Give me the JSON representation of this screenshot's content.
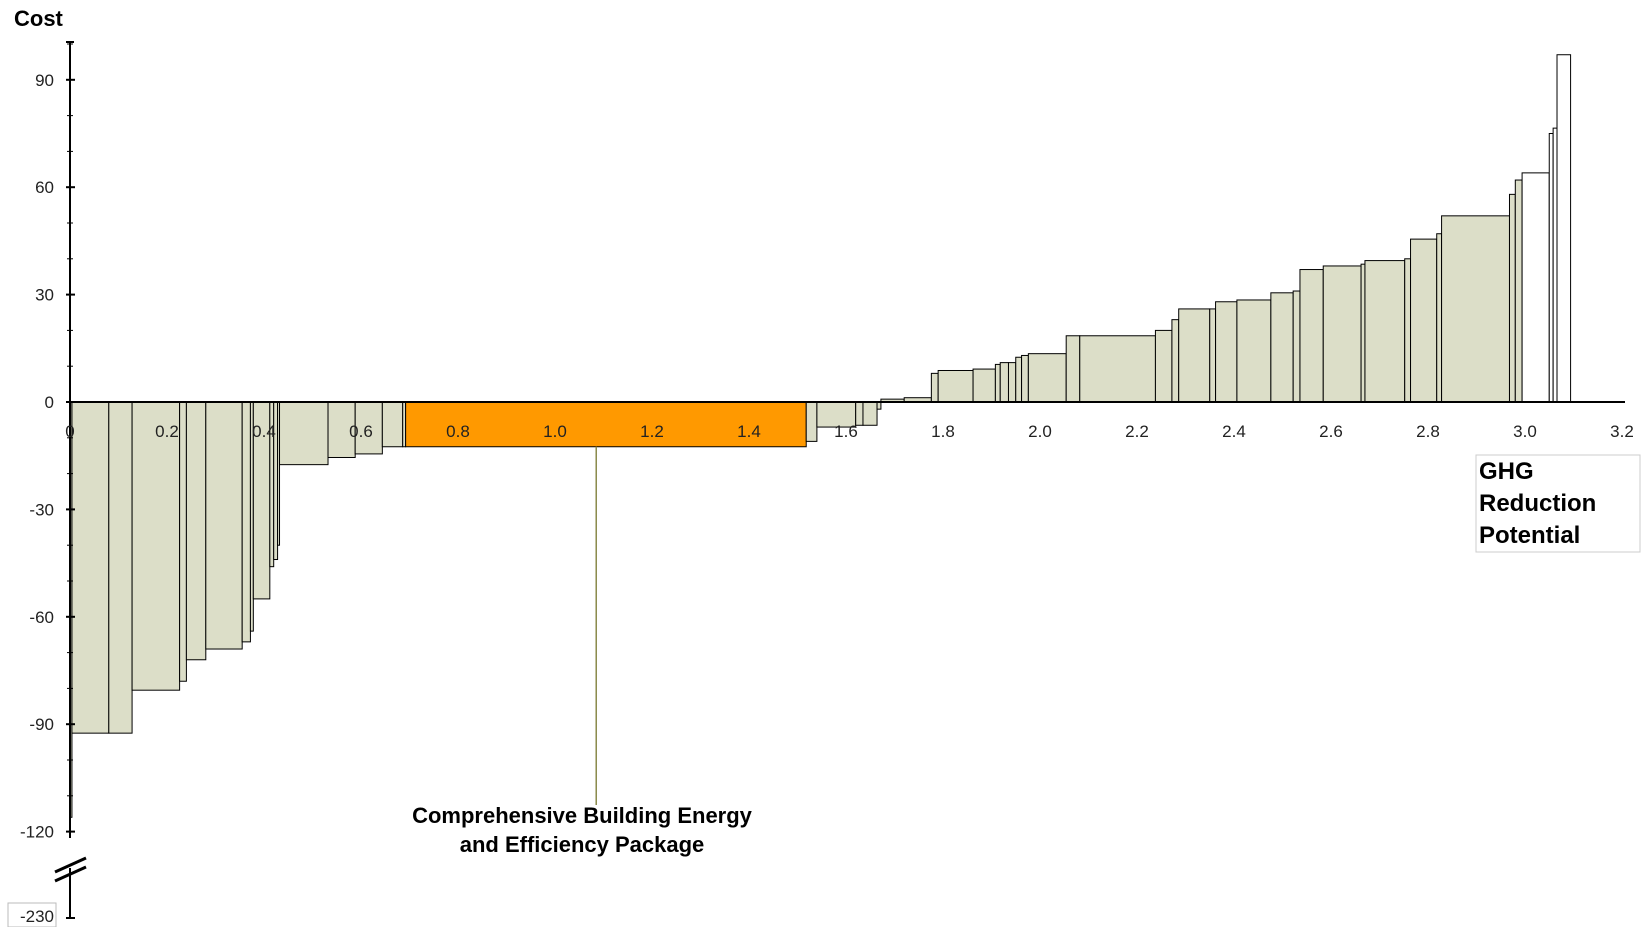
{
  "chart_data": {
    "type": "bar",
    "subtype": "marginal-abatement-cost-curve",
    "ylabel": "Cost",
    "xlabel": "GHG Reduction Potential",
    "xlim": [
      0,
      3.2
    ],
    "ylim": [
      -120,
      100
    ],
    "y_axis_break": true,
    "y_break_bottom_label": "-230",
    "x_ticks": [
      {
        "value": 0.0,
        "label": "0"
      },
      {
        "value": 0.2,
        "label": "0.2"
      },
      {
        "value": 0.4,
        "label": "0.4"
      },
      {
        "value": 0.6,
        "label": "0.6"
      },
      {
        "value": 0.8,
        "label": "0.8"
      },
      {
        "value": 1.0,
        "label": "1.0"
      },
      {
        "value": 1.2,
        "label": "1.2"
      },
      {
        "value": 1.4,
        "label": "1.4"
      },
      {
        "value": 1.6,
        "label": "1.6"
      },
      {
        "value": 1.8,
        "label": "1.8"
      },
      {
        "value": 2.0,
        "label": "2.0"
      },
      {
        "value": 2.2,
        "label": "2.2"
      },
      {
        "value": 2.4,
        "label": "2.4"
      },
      {
        "value": 2.6,
        "label": "2.6"
      },
      {
        "value": 2.8,
        "label": "2.8"
      },
      {
        "value": 3.0,
        "label": "3.0"
      },
      {
        "value": 3.2,
        "label": "3.2"
      }
    ],
    "y_ticks": [
      {
        "value": 90,
        "label": "90"
      },
      {
        "value": 60,
        "label": "60"
      },
      {
        "value": 30,
        "label": "30"
      },
      {
        "value": 0,
        "label": "0"
      },
      {
        "value": -30,
        "label": "-30"
      },
      {
        "value": -60,
        "label": "-60"
      },
      {
        "value": -90,
        "label": "-90"
      },
      {
        "value": -120,
        "label": "-120"
      }
    ],
    "colors": {
      "default": "#dcdec8",
      "highlight": "#ff9900",
      "white": "#ffffff",
      "border": "#000000"
    },
    "bars": [
      {
        "x0": 0.0,
        "x1": 0.004,
        "cost": -116
      },
      {
        "x0": 0.004,
        "x1": 0.08,
        "cost": -92.5
      },
      {
        "x0": 0.08,
        "x1": 0.128,
        "cost": -92.5
      },
      {
        "x0": 0.128,
        "x1": 0.226,
        "cost": -80.5
      },
      {
        "x0": 0.226,
        "x1": 0.24,
        "cost": -78
      },
      {
        "x0": 0.24,
        "x1": 0.28,
        "cost": -72
      },
      {
        "x0": 0.28,
        "x1": 0.355,
        "cost": -69
      },
      {
        "x0": 0.355,
        "x1": 0.372,
        "cost": -67
      },
      {
        "x0": 0.372,
        "x1": 0.378,
        "cost": -64
      },
      {
        "x0": 0.378,
        "x1": 0.412,
        "cost": -55
      },
      {
        "x0": 0.412,
        "x1": 0.42,
        "cost": -46
      },
      {
        "x0": 0.42,
        "x1": 0.428,
        "cost": -44
      },
      {
        "x0": 0.428,
        "x1": 0.432,
        "cost": -40
      },
      {
        "x0": 0.432,
        "x1": 0.532,
        "cost": -17.5
      },
      {
        "x0": 0.532,
        "x1": 0.588,
        "cost": -15.5
      },
      {
        "x0": 0.588,
        "x1": 0.644,
        "cost": -14.5
      },
      {
        "x0": 0.644,
        "x1": 0.686,
        "cost": -12.5
      },
      {
        "x0": 0.686,
        "x1": 0.692,
        "cost": -12.5
      },
      {
        "x0": 0.692,
        "x1": 1.518,
        "cost": -12.5,
        "highlight": true
      },
      {
        "x0": 1.518,
        "x1": 1.54,
        "cost": -11
      },
      {
        "x0": 1.54,
        "x1": 1.62,
        "cost": -7
      },
      {
        "x0": 1.62,
        "x1": 1.635,
        "cost": -6.5
      },
      {
        "x0": 1.635,
        "x1": 1.664,
        "cost": -6.5
      },
      {
        "x0": 1.664,
        "x1": 1.672,
        "cost": -2
      },
      {
        "x0": 1.672,
        "x1": 1.72,
        "cost": 0.8
      },
      {
        "x0": 1.72,
        "x1": 1.776,
        "cost": 1.2
      },
      {
        "x0": 1.776,
        "x1": 1.79,
        "cost": 8
      },
      {
        "x0": 1.79,
        "x1": 1.862,
        "cost": 8.8
      },
      {
        "x0": 1.862,
        "x1": 1.908,
        "cost": 9.2
      },
      {
        "x0": 1.908,
        "x1": 1.918,
        "cost": 10.5
      },
      {
        "x0": 1.918,
        "x1": 1.935,
        "cost": 11
      },
      {
        "x0": 1.935,
        "x1": 1.95,
        "cost": 11
      },
      {
        "x0": 1.95,
        "x1": 1.962,
        "cost": 12.5
      },
      {
        "x0": 1.962,
        "x1": 1.976,
        "cost": 13
      },
      {
        "x0": 1.976,
        "x1": 2.054,
        "cost": 13.5
      },
      {
        "x0": 2.054,
        "x1": 2.082,
        "cost": 18.5
      },
      {
        "x0": 2.082,
        "x1": 2.238,
        "cost": 18.5
      },
      {
        "x0": 2.238,
        "x1": 2.272,
        "cost": 20
      },
      {
        "x0": 2.272,
        "x1": 2.286,
        "cost": 23
      },
      {
        "x0": 2.286,
        "x1": 2.35,
        "cost": 26
      },
      {
        "x0": 2.35,
        "x1": 2.362,
        "cost": 26
      },
      {
        "x0": 2.362,
        "x1": 2.406,
        "cost": 28
      },
      {
        "x0": 2.406,
        "x1": 2.476,
        "cost": 28.5
      },
      {
        "x0": 2.476,
        "x1": 2.522,
        "cost": 30.5
      },
      {
        "x0": 2.522,
        "x1": 2.536,
        "cost": 31
      },
      {
        "x0": 2.536,
        "x1": 2.584,
        "cost": 37
      },
      {
        "x0": 2.584,
        "x1": 2.662,
        "cost": 38
      },
      {
        "x0": 2.662,
        "x1": 2.67,
        "cost": 38.5
      },
      {
        "x0": 2.67,
        "x1": 2.752,
        "cost": 39.5
      },
      {
        "x0": 2.752,
        "x1": 2.764,
        "cost": 40
      },
      {
        "x0": 2.764,
        "x1": 2.818,
        "cost": 45.5
      },
      {
        "x0": 2.818,
        "x1": 2.828,
        "cost": 47
      },
      {
        "x0": 2.828,
        "x1": 2.968,
        "cost": 52
      },
      {
        "x0": 2.968,
        "x1": 2.98,
        "cost": 58
      },
      {
        "x0": 2.98,
        "x1": 2.994,
        "cost": 62
      },
      {
        "x0": 2.994,
        "x1": 3.05,
        "cost": 64,
        "fill": "white"
      },
      {
        "x0": 3.05,
        "x1": 3.058,
        "cost": 75,
        "fill": "white"
      },
      {
        "x0": 3.058,
        "x1": 3.066,
        "cost": 76.5,
        "fill": "white"
      },
      {
        "x0": 3.066,
        "x1": 3.094,
        "cost": 97,
        "fill": "white"
      }
    ],
    "annotations": [
      {
        "lines": [
          "Comprehensive Building Energy",
          "and Efficiency Package"
        ],
        "points_to_x": 1.085,
        "points_to_cost": -12.5
      }
    ]
  }
}
